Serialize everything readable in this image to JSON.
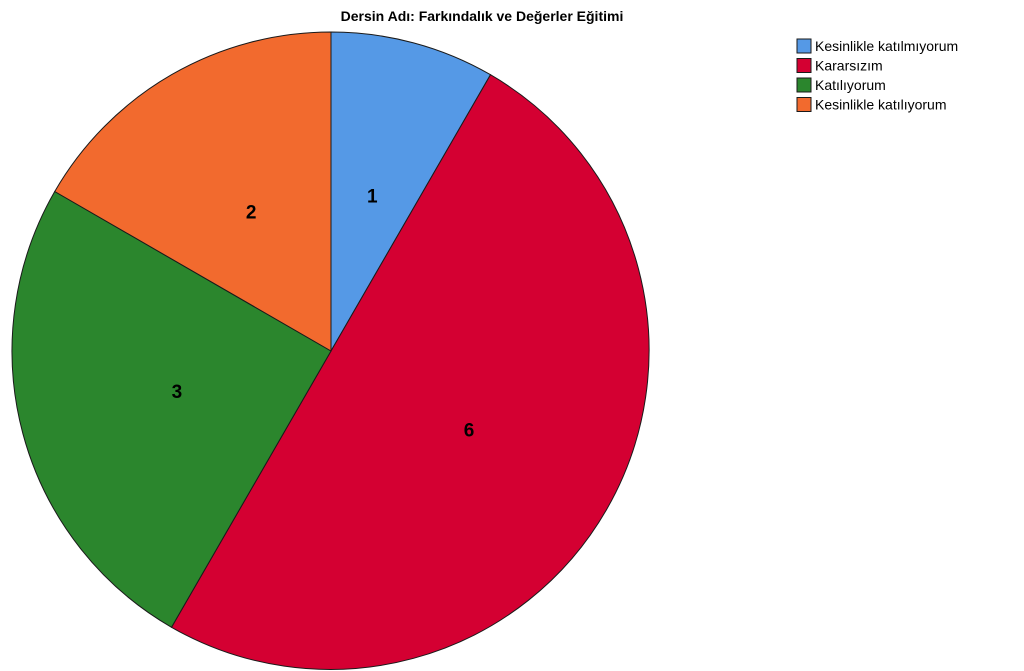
{
  "chart_data": {
    "type": "pie",
    "title": "Dersin Adı: Farkındalık ve Değerler Eğitimi",
    "categories": [
      "Kesinlikle katılmıyorum",
      "Kararsızım",
      "Katılıyorum",
      "Kesinlikle katılıyorum"
    ],
    "values": [
      1,
      6,
      3,
      2
    ],
    "colors": [
      "#5599E6",
      "#D40032",
      "#2B862D",
      "#F26A2E"
    ],
    "legend_position": "top-right",
    "data_labels": true
  }
}
